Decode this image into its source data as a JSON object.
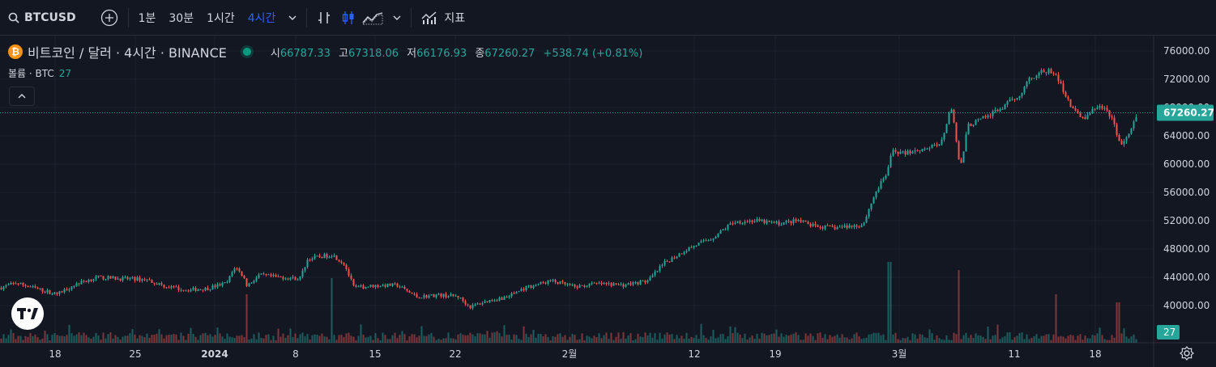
{
  "toolbar": {
    "symbol": "BTCUSD",
    "intervals": [
      "1분",
      "30분",
      "1시간",
      "4시간"
    ],
    "active_interval": "4시간",
    "indicators_label": "지표"
  },
  "legend": {
    "title": "비트코인 / 달러 · 4시간 · BINANCE",
    "open_label": "시",
    "open": "66787.33",
    "high_label": "고",
    "high": "67318.06",
    "low_label": "저",
    "low": "66176.93",
    "close_label": "종",
    "close": "67260.27",
    "change": "+538.74 (+0.81%)"
  },
  "volume": {
    "label": "볼륨 · BTC",
    "value": "27"
  },
  "colors": {
    "up": "#26a69a",
    "down": "#ef5350",
    "background": "#131722",
    "grid": "#1e222d",
    "accent": "#2962ff"
  },
  "chart_data": {
    "type": "candlestick",
    "x_labels": [
      "18",
      "25",
      "2024",
      "8",
      "15",
      "22",
      "2월",
      "12",
      "19",
      "3월",
      "11",
      "18"
    ],
    "y_ticks": [
      "40000.00",
      "44000.00",
      "48000.00",
      "52000.00",
      "56000.00",
      "60000.00",
      "64000.00",
      "68000.00",
      "72000.00",
      "76000.00"
    ],
    "ylim": [
      36400,
      78000
    ],
    "last_price": "67260.27",
    "last_volume": "27",
    "price_path": [
      [
        0,
        42500
      ],
      [
        20,
        43200
      ],
      [
        45,
        42400
      ],
      [
        70,
        41600
      ],
      [
        95,
        43100
      ],
      [
        120,
        44000
      ],
      [
        150,
        43800
      ],
      [
        180,
        43700
      ],
      [
        205,
        42700
      ],
      [
        230,
        42200
      ],
      [
        255,
        42400
      ],
      [
        280,
        43200
      ],
      [
        290,
        45500
      ],
      [
        300,
        44200
      ],
      [
        305,
        42800
      ],
      [
        320,
        44300
      ],
      [
        345,
        44000
      ],
      [
        370,
        43800
      ],
      [
        380,
        46600
      ],
      [
        395,
        46900
      ],
      [
        410,
        47200
      ],
      [
        425,
        45900
      ],
      [
        437,
        42500
      ],
      [
        460,
        42800
      ],
      [
        490,
        42900
      ],
      [
        515,
        41200
      ],
      [
        540,
        41500
      ],
      [
        565,
        41300
      ],
      [
        580,
        39800
      ],
      [
        600,
        40600
      ],
      [
        625,
        41200
      ],
      [
        650,
        42600
      ],
      [
        680,
        43500
      ],
      [
        710,
        42600
      ],
      [
        735,
        43100
      ],
      [
        770,
        42900
      ],
      [
        800,
        43500
      ],
      [
        820,
        46000
      ],
      [
        850,
        48100
      ],
      [
        880,
        49600
      ],
      [
        905,
        51800
      ],
      [
        930,
        52000
      ],
      [
        960,
        51600
      ],
      [
        985,
        52000
      ],
      [
        1005,
        51200
      ],
      [
        1030,
        51000
      ],
      [
        1065,
        51400
      ],
      [
        1080,
        55800
      ],
      [
        1095,
        58800
      ],
      [
        1102,
        62000
      ],
      [
        1115,
        61500
      ],
      [
        1135,
        62100
      ],
      [
        1160,
        62600
      ],
      [
        1175,
        68200
      ],
      [
        1185,
        59000
      ],
      [
        1195,
        65500
      ],
      [
        1215,
        66500
      ],
      [
        1240,
        68200
      ],
      [
        1260,
        70000
      ],
      [
        1270,
        72100
      ],
      [
        1285,
        73000
      ],
      [
        1300,
        73100
      ],
      [
        1315,
        70000
      ],
      [
        1325,
        67500
      ],
      [
        1340,
        66500
      ],
      [
        1355,
        68300
      ],
      [
        1370,
        67000
      ],
      [
        1385,
        62500
      ],
      [
        1395,
        64500
      ],
      [
        1405,
        67260
      ]
    ],
    "volume_spikes": [
      [
        305,
        6
      ],
      [
        409,
        8
      ],
      [
        1098,
        10
      ],
      [
        1183,
        9
      ],
      [
        1304,
        6
      ],
      [
        1380,
        5
      ]
    ]
  }
}
